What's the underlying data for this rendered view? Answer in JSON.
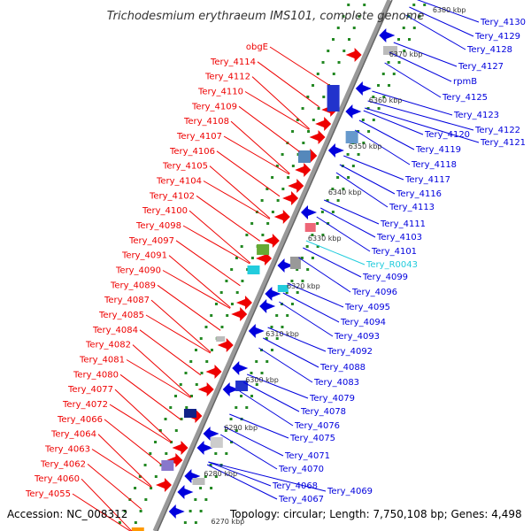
{
  "title": "Trichodesmium erythraeum IMS101, complete genome",
  "footer": {
    "accession": "Accession: NC_008312",
    "topology": "Topology: circular; Length: 7,750,108 bp; Genes: 4,498"
  },
  "colors": {
    "forward": "#ee0000",
    "reverse": "#0000dd",
    "rna": "#22ccdd",
    "backbone": "#999999",
    "ticks": "#228822"
  },
  "kbp_labels": [
    "6380 kbp",
    "6370 kbp",
    "6360 kbp",
    "6350 kbp",
    "6340 kbp",
    "6330 kbp",
    "6320 kbp",
    "6310 kbp",
    "6300 kbp",
    "6290 kbp",
    "6280 kbp",
    "6270 kbp"
  ],
  "left_labels": [
    "obgE",
    "Tery_4114",
    "Tery_4112",
    "Tery_4110",
    "Tery_4109",
    "Tery_4108",
    "Tery_4107",
    "Tery_4106",
    "Tery_4105",
    "Tery_4104",
    "Tery_4102",
    "Tery_4100",
    "Tery_4098",
    "Tery_4097",
    "Tery_4091",
    "Tery_4090",
    "Tery_4089",
    "Tery_4087",
    "Tery_4085",
    "Tery_4084",
    "Tery_4082",
    "Tery_4081",
    "Tery_4080",
    "Tery_4077",
    "Tery_4072",
    "Tery_4066",
    "Tery_4064",
    "Tery_4063",
    "Tery_4062",
    "Tery_4060",
    "Tery_4055"
  ],
  "right_labels": [
    "Tery_4130",
    "Tery_4129",
    "Tery_4128",
    "Tery_4127",
    "rpmB",
    "Tery_4125",
    "Tery_4123",
    "Tery_4122",
    "Tery_4121",
    "Tery_4120",
    "Tery_4119",
    "Tery_4118",
    "Tery_4117",
    "Tery_4116",
    "Tery_4113",
    "Tery_4111",
    "Tery_4103",
    "Tery_4101",
    "Tery_R0043",
    "Tery_4099",
    "Tery_4096",
    "Tery_4095",
    "Tery_4094",
    "Tery_4093",
    "Tery_4092",
    "Tery_4088",
    "Tery_4083",
    "Tery_4079",
    "Tery_4078",
    "Tery_4076",
    "Tery_4075",
    "Tery_4071",
    "Tery_4070",
    "Tery_4068",
    "Tery_4069",
    "Tery_4067"
  ]
}
